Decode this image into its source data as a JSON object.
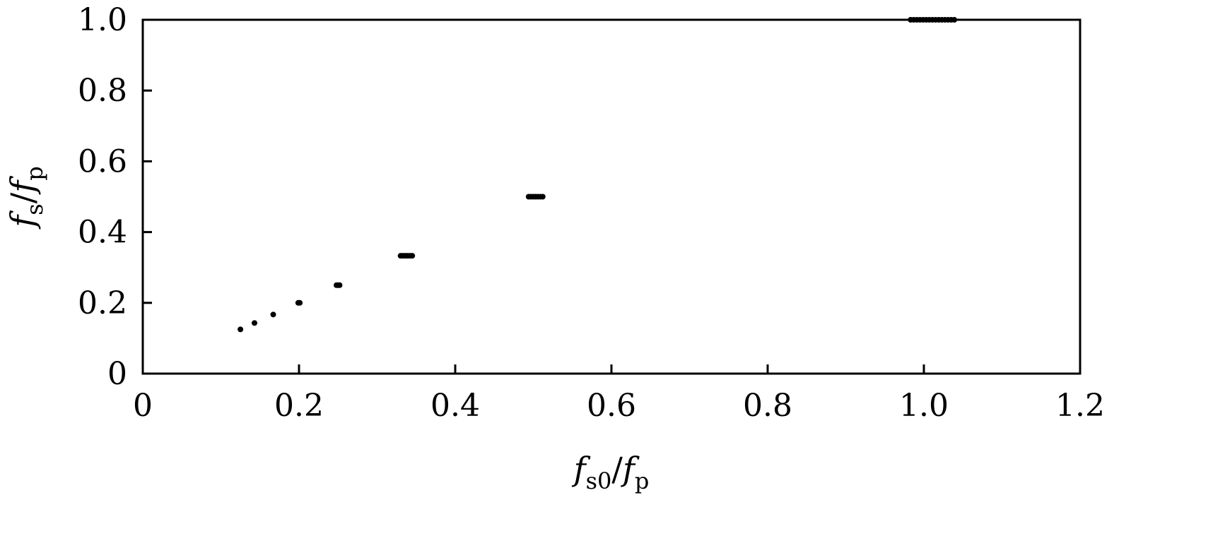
{
  "chart_data": {
    "type": "scatter",
    "xlabel": {
      "base": "f",
      "sub": "s0",
      "sep": "/",
      "base2": "f",
      "sub2": "p"
    },
    "ylabel": {
      "base": "f",
      "sub": "s",
      "sep": "/",
      "base2": "f",
      "sub2": "p"
    },
    "xlim": [
      0,
      1.2
    ],
    "ylim": [
      0,
      1.0
    ],
    "xticks": [
      0,
      0.2,
      0.4,
      0.6,
      0.8,
      1.0,
      1.2
    ],
    "xtick_labels": [
      "0",
      "0.2",
      "0.4",
      "0.6",
      "0.8",
      "1.0",
      "1.2"
    ],
    "yticks": [
      0,
      0.2,
      0.4,
      0.6,
      0.8,
      1.0
    ],
    "ytick_labels": [
      "0",
      "0.2",
      "0.4",
      "0.6",
      "0.8",
      "1.0"
    ],
    "grid": false,
    "marker_color": "#000000",
    "series": [
      {
        "points": [
          [
            0.125,
            0.125
          ],
          [
            0.143,
            0.143
          ],
          [
            0.167,
            0.167
          ],
          [
            0.199,
            0.2
          ],
          [
            0.201,
            0.2
          ],
          [
            0.248,
            0.25
          ],
          [
            0.25,
            0.25
          ],
          [
            0.252,
            0.25
          ],
          [
            0.33,
            0.333
          ],
          [
            0.333,
            0.333
          ],
          [
            0.336,
            0.333
          ],
          [
            0.339,
            0.333
          ],
          [
            0.342,
            0.333
          ],
          [
            0.345,
            0.333
          ],
          [
            0.494,
            0.5
          ],
          [
            0.497,
            0.5
          ],
          [
            0.5,
            0.5
          ],
          [
            0.503,
            0.5
          ],
          [
            0.506,
            0.5
          ],
          [
            0.509,
            0.5
          ],
          [
            0.512,
            0.5
          ],
          [
            0.983,
            1.0
          ],
          [
            0.987,
            1.0
          ],
          [
            0.991,
            1.0
          ],
          [
            0.995,
            1.0
          ],
          [
            0.999,
            1.0
          ],
          [
            1.003,
            1.0
          ],
          [
            1.007,
            1.0
          ],
          [
            1.011,
            1.0
          ],
          [
            1.015,
            1.0
          ],
          [
            1.019,
            1.0
          ],
          [
            1.023,
            1.0
          ],
          [
            1.027,
            1.0
          ],
          [
            1.031,
            1.0
          ],
          [
            1.035,
            1.0
          ],
          [
            1.039,
            1.0
          ]
        ]
      }
    ]
  }
}
